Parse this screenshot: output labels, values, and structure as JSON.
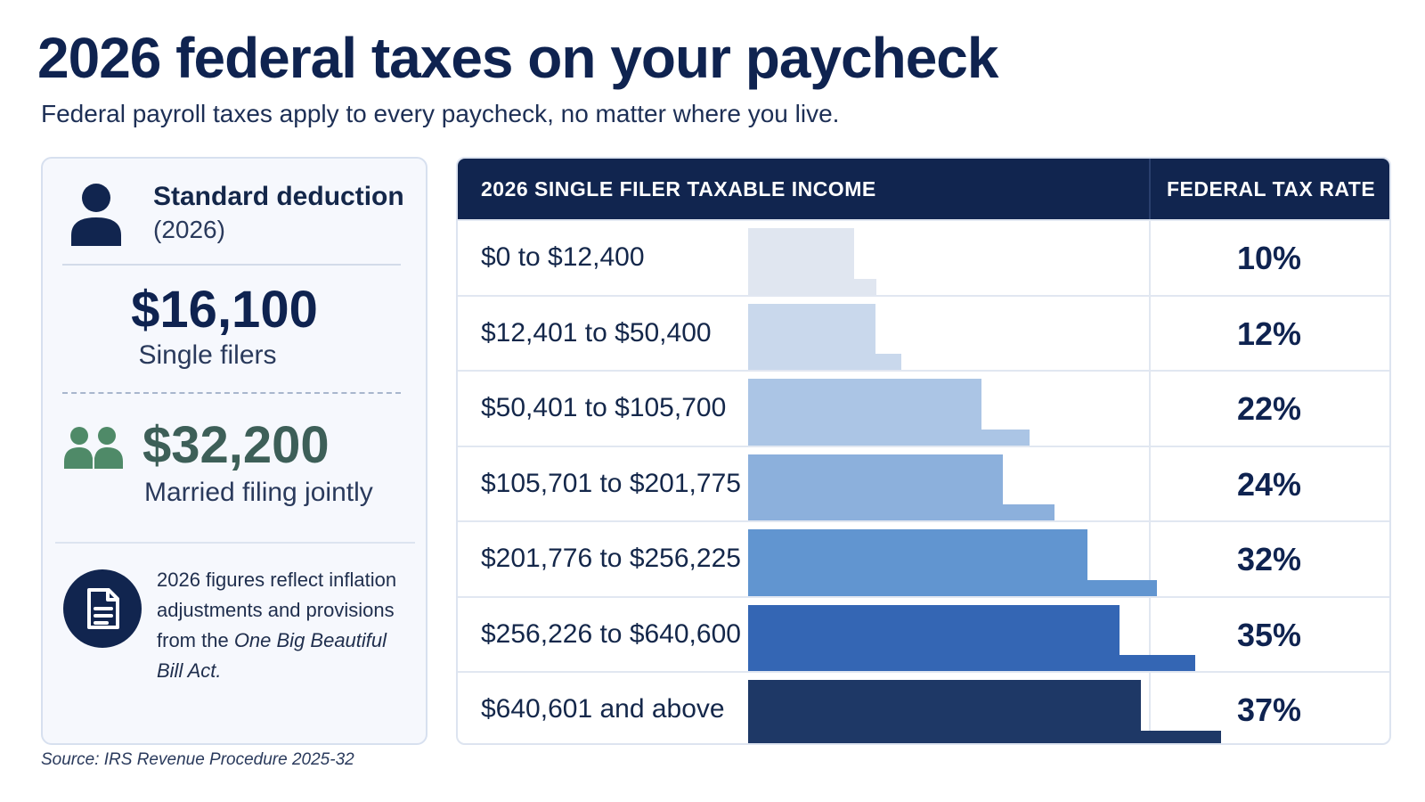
{
  "header": {
    "title": "2026 federal taxes on your paycheck",
    "subtitle": "Federal payroll taxes apply to every paycheck, no matter where you live."
  },
  "deduction": {
    "title": "Standard deduction",
    "year": "(2026)",
    "single_amount": "$16,100",
    "single_label": "Single filers",
    "married_amount": "$32,200",
    "married_label": "Married filing jointly",
    "note_before": "2026 figures reflect inflation adjustments and provisions from the ",
    "note_italic": "One Big Beautiful Bill Act.",
    "icons": [
      "person-icon",
      "couple-icon",
      "document-icon"
    ]
  },
  "source": "Source: IRS Revenue Procedure 2025-32",
  "colors": {
    "navy": "#11254f",
    "green_amount": "#3d5f58",
    "green_icon": "#4f8a68",
    "bars": [
      "#e0e6f0",
      "#c9d8ec",
      "#abc5e5",
      "#8cb0dc",
      "#6195d0",
      "#3466b4",
      "#1e3866"
    ]
  },
  "chart_data": {
    "type": "table",
    "columns": [
      "2026 SINGLE FILER TAXABLE INCOME",
      "FEDERAL TAX RATE"
    ],
    "brackets": [
      "$0 to $12,400",
      "$12,401 to $50,400",
      "$50,401 to $105,700",
      "$105,701 to $201,775",
      "$201,776 to $256,225",
      "$256,226 to $640,600",
      "$640,601 and above"
    ],
    "rates": [
      "10%",
      "12%",
      "22%",
      "24%",
      "32%",
      "35%",
      "37%"
    ],
    "rate_values": [
      10,
      12,
      22,
      24,
      32,
      35,
      37
    ]
  }
}
